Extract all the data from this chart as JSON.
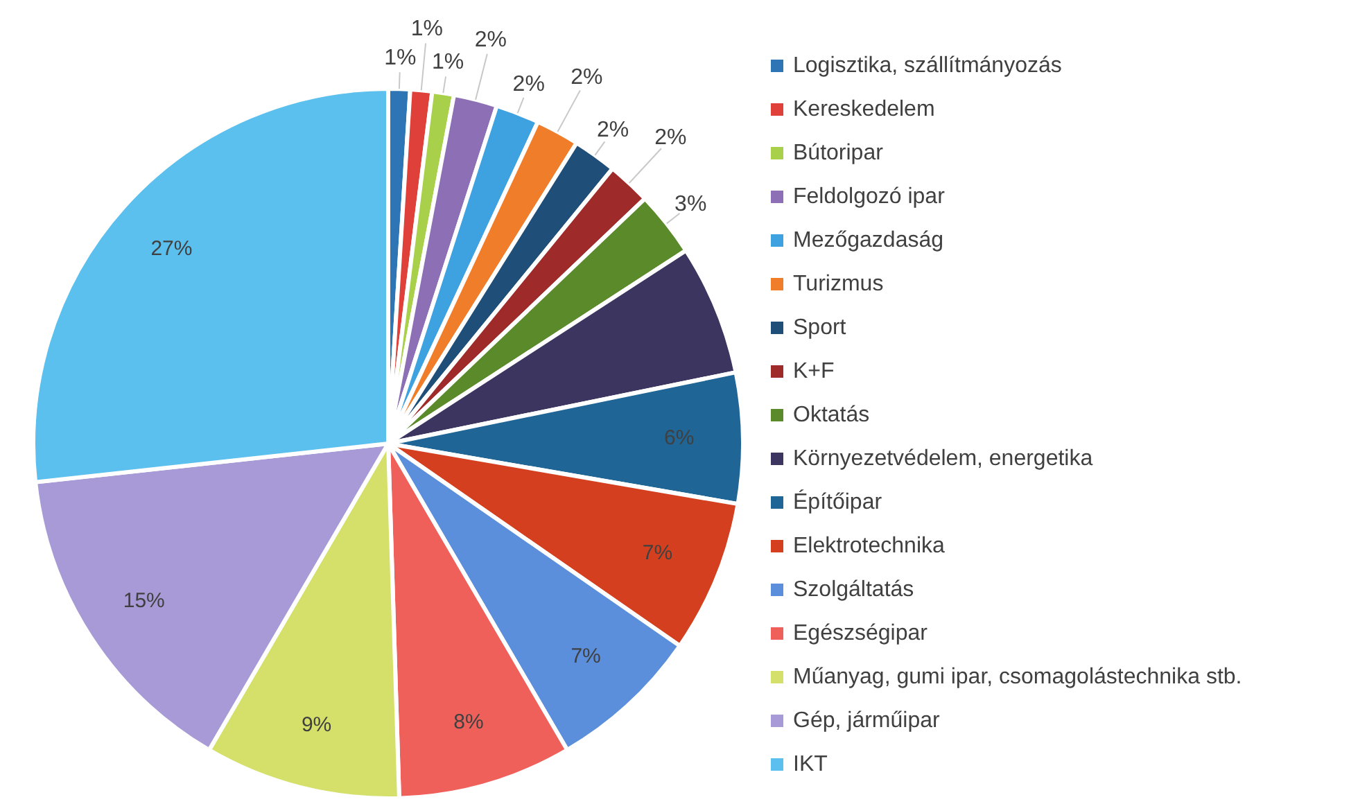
{
  "chart_data": {
    "type": "pie",
    "categories": [
      "Logisztika, szállítmányozás",
      "Kereskedelem",
      "Bútoripar",
      "Feldolgozó ipar",
      "Mezőgazdaság",
      "Turizmus",
      "Sport",
      "K+F",
      "Oktatás",
      "Környezetvédelem, energetika",
      "Építőipar",
      "Elektrotechnika",
      "Szolgáltatás",
      "Egészségipar",
      "Műanyag, gumi ipar, csomagolástechnika stb.",
      "Gép, járműipar",
      "IKT"
    ],
    "values": [
      1,
      1,
      1,
      2,
      2,
      2,
      2,
      2,
      3,
      6,
      6,
      7,
      7,
      8,
      9,
      15,
      27
    ],
    "colors": [
      "#2e75b6",
      "#e0403a",
      "#a9d04a",
      "#8c6fb5",
      "#3fa2e0",
      "#f07d2a",
      "#1f4e79",
      "#9e2a2a",
      "#5a8a2a",
      "#3b3560",
      "#1f6596",
      "#d4401f",
      "#5b8fdc",
      "#f0605a",
      "#d4e06a",
      "#a89ad6",
      "#5bc0ee"
    ],
    "value_labels": [
      "1%",
      "1%",
      "1%",
      "2%",
      "2%",
      "2%",
      "2%",
      "2%",
      "3%",
      null,
      "6%",
      "7%",
      "7%",
      "8%",
      "9%",
      "15%",
      "27%"
    ],
    "legend": "right"
  }
}
